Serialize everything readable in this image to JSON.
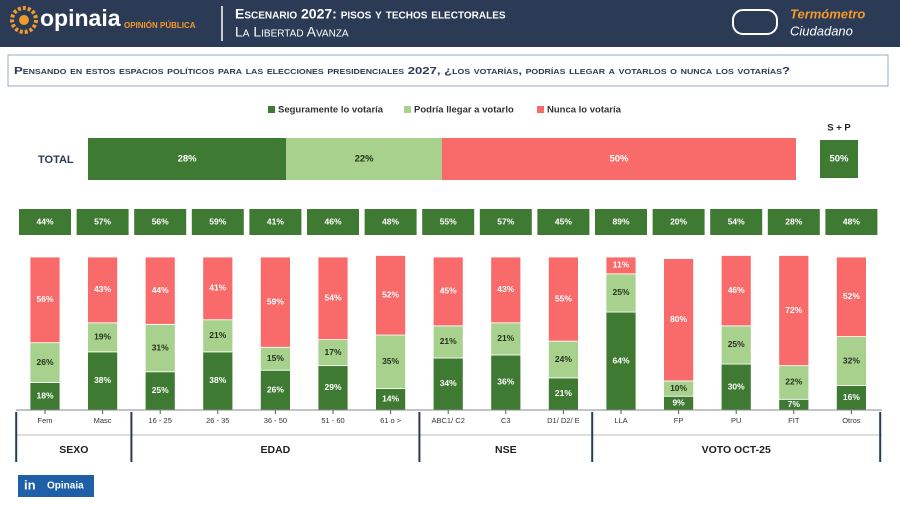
{
  "header": {
    "brand": "opinaia",
    "brand_tagline": "OPINIÓN PÚBLICA",
    "title": "Escenario 2027: pisos y techos electorales",
    "subtitle": "La Libertad Avanza",
    "partner_line1": "Termómetro",
    "partner_line2": "Ciudadano"
  },
  "question": "Pensando en estos espacios políticos para las elecciones presidenciales 2027, ¿los votarías, podrías llegar a votarlos o nunca los votarías?",
  "chart_data": {
    "type": "stacked-bar",
    "ylim": [
      0,
      100
    ],
    "series": [
      {
        "name": "Seguramente lo votaría",
        "color": "#3f7a32",
        "values": [
          18,
          38,
          25,
          38,
          26,
          29,
          14,
          34,
          36,
          21,
          64,
          9,
          30,
          7,
          16
        ],
        "value_labels": [
          "18%",
          "38%",
          "25%",
          "38%",
          "26%",
          "29%",
          "14%",
          "34%",
          "36%",
          "21%",
          "64%",
          "9%",
          "30%",
          "7%",
          "16%"
        ]
      },
      {
        "name": "Podría llegar a votarlo",
        "color": "#a9d18e",
        "values": [
          26,
          19,
          31,
          21,
          15,
          17,
          35,
          21,
          21,
          24,
          25,
          10,
          25,
          22,
          32
        ],
        "value_labels": [
          "26%",
          "19%",
          "31%",
          "21%",
          "15%",
          "17%",
          "35%",
          "21%",
          "21%",
          "24%",
          "25%",
          "10%",
          "25%",
          "22%",
          "32%"
        ]
      },
      {
        "name": "Nunca lo votaría",
        "color": "#f96a6a",
        "values": [
          56,
          43,
          44,
          41,
          59,
          54,
          52,
          45,
          43,
          55,
          11,
          80,
          46,
          72,
          52
        ],
        "value_labels": [
          "56%",
          "43%",
          "44%",
          "41%",
          "59%",
          "54%",
          "52%",
          "45%",
          "43%",
          "55%",
          "11%",
          "80%",
          "46%",
          "72%",
          "52%"
        ]
      }
    ],
    "categories": [
      "Fem",
      "Masc",
      "16 - 25",
      "26 - 35",
      "36 - 50",
      "51 - 60",
      "61 o >",
      "ABC1/ C2",
      "C3",
      "D1/ D2/ E",
      "LLA",
      "FP",
      "PU",
      "FIT",
      "Otros"
    ],
    "groups": [
      {
        "label": "SEXO",
        "start": 0,
        "end": 1
      },
      {
        "label": "EDAD",
        "start": 2,
        "end": 6
      },
      {
        "label": "NSE",
        "start": 7,
        "end": 9
      },
      {
        "label": "VOTO OCT-25",
        "start": 10,
        "end": 14
      }
    ],
    "total": {
      "label": "TOTAL",
      "values": [
        28,
        22,
        50
      ],
      "value_labels": [
        "28%",
        "22%",
        "50%"
      ]
    },
    "sp": {
      "label": "S + P",
      "total_value": 50,
      "total_value_label": "50%",
      "values": [
        44,
        57,
        56,
        59,
        41,
        46,
        48,
        55,
        57,
        45,
        89,
        20,
        54,
        28,
        48
      ],
      "value_labels": [
        "44%",
        "57%",
        "56%",
        "59%",
        "41%",
        "46%",
        "48%",
        "55%",
        "57%",
        "45%",
        "89%",
        "20%",
        "54%",
        "28%",
        "48%"
      ]
    }
  },
  "footer": {
    "icon": "in",
    "label": "Opinaia"
  }
}
